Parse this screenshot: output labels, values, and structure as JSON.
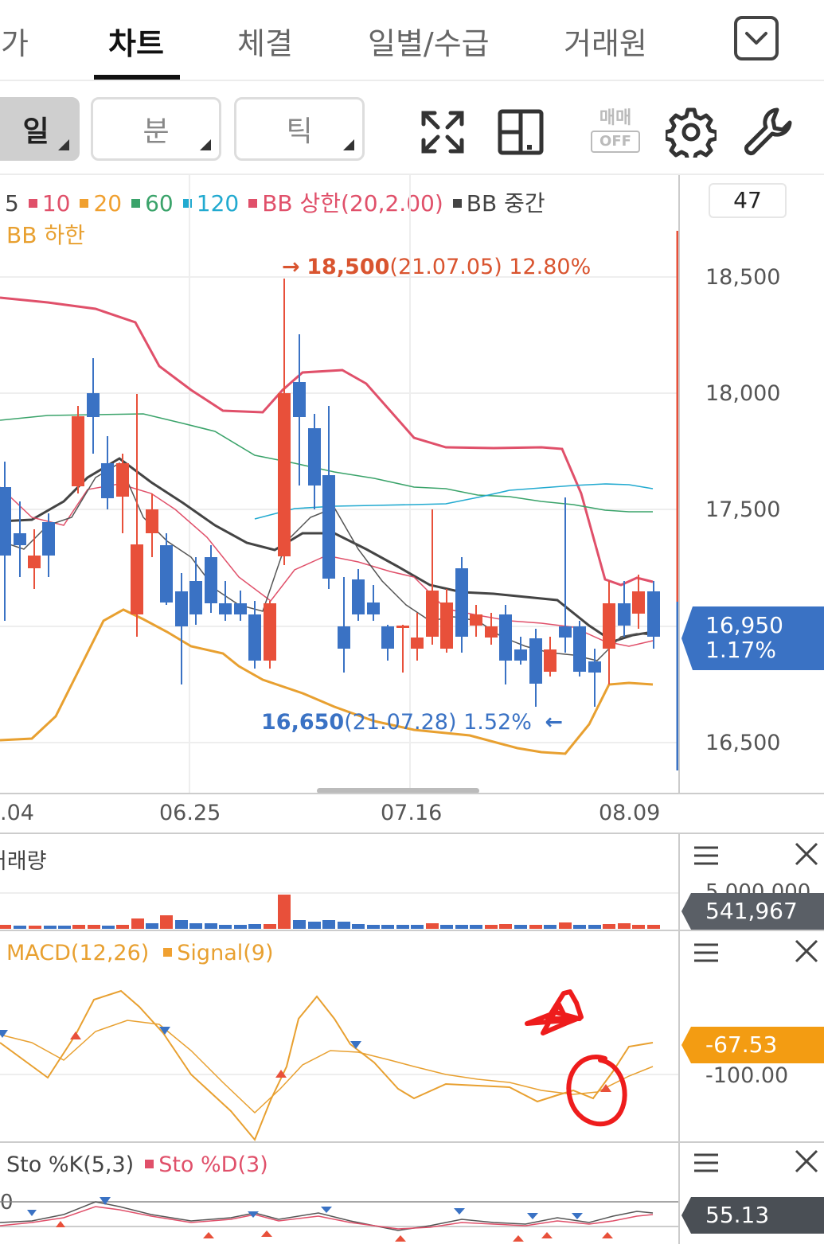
{
  "tabs": [
    {
      "label": "호가",
      "active": false
    },
    {
      "label": "차트",
      "active": true
    },
    {
      "label": "체결",
      "active": false
    },
    {
      "label": "일별/수급",
      "active": false
    },
    {
      "label": "거래원",
      "active": false
    }
  ],
  "toolbar": {
    "period_day": "일",
    "period_min": "분",
    "period_tick": "틱",
    "trade_label": "매매",
    "trade_state": "OFF",
    "icons": [
      "fullscreen-icon",
      "layout-icon",
      "settings-gear-icon",
      "wrench-icon"
    ]
  },
  "main_chart": {
    "legend_items": [
      {
        "label": "5",
        "color": "#444444"
      },
      {
        "label": "10",
        "color": "#e0506a"
      },
      {
        "label": "20",
        "color": "#f0a030"
      },
      {
        "label": "60",
        "color": "#3aa36a"
      },
      {
        "label": "120",
        "color": "#22aad0"
      },
      {
        "label": "BB 상한(20,2.00)",
        "color": "#e0506a"
      },
      {
        "label": "BB 중간",
        "color": "#444444"
      }
    ],
    "legend_line2": "BB 하한",
    "legend_line2_color": "#e8a030",
    "count": "47",
    "price_ticks": [
      "18,500",
      "18,000",
      "17,500",
      "16,500"
    ],
    "high_annotation": {
      "arrow": "→",
      "price": "18,500",
      "detail": "(21.07.05) 12.80%"
    },
    "low_annotation": {
      "price": "16,650",
      "detail": "(21.07.28) 1.52%",
      "arrow": "←"
    },
    "current_price": "16,950",
    "current_change": "1.17%",
    "dates": [
      ".04",
      "06.25",
      "07.16",
      "08.09"
    ]
  },
  "volume_panel": {
    "title": "거래량",
    "tick_clipped": "5,000,000",
    "current": "541,967"
  },
  "macd_panel": {
    "legend_items": [
      {
        "label": "MACD(12,26)",
        "color": "#f0a030"
      },
      {
        "label": "Signal(9)",
        "color": "#f0a030"
      }
    ],
    "current": "-67.53",
    "tick": "-100.00"
  },
  "sto_panel": {
    "legend_items": [
      {
        "label": "Sto %K(5,3)",
        "color": "#444444"
      },
      {
        "label": "Sto %D(3)",
        "color": "#e0506a"
      }
    ],
    "tick_clipped": "0",
    "current": "55.13"
  },
  "colors": {
    "up": "#e8503a",
    "down": "#3a72c4",
    "bb_upper": "#e0506a",
    "bb_lower": "#e8a030",
    "ma60": "#3aa36a",
    "ma120": "#22aad0",
    "current_badge": "#3a72c4",
    "macd_badge": "#f39c12",
    "dark_badge": "#555555"
  }
}
